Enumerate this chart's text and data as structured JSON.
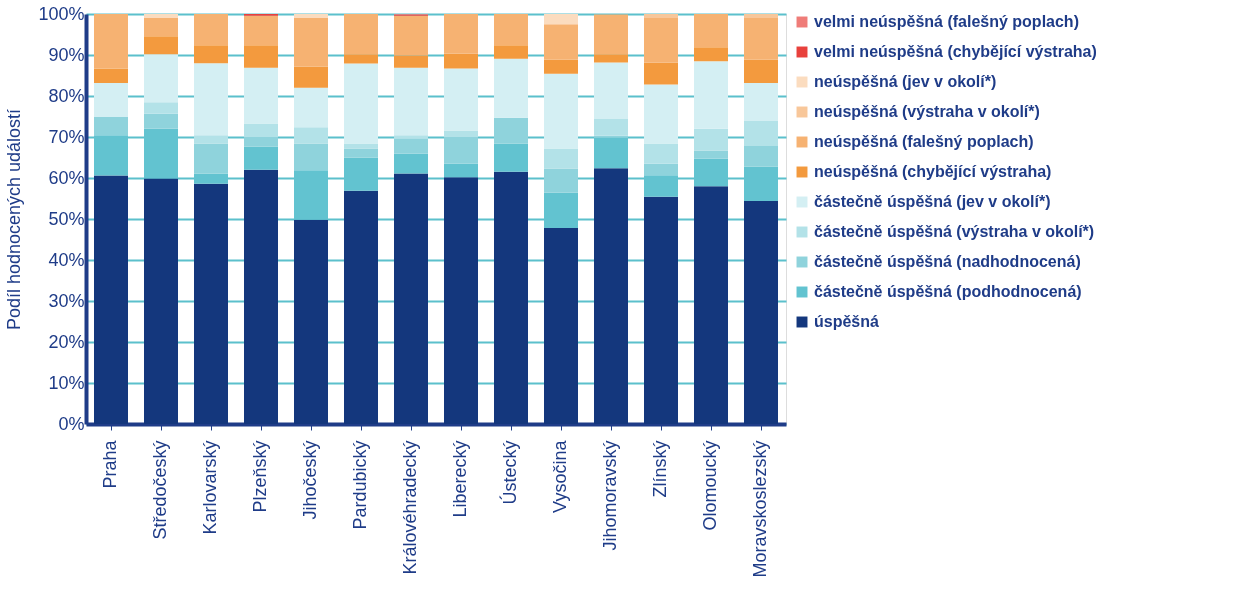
{
  "chart_data": {
    "type": "bar",
    "stacked": true,
    "ylabel": "Podíl hodnocených událostí",
    "categories": [
      "Praha",
      "Středočeský",
      "Karlovarský",
      "Plzeňský",
      "Jihočeský",
      "Pardubický",
      "Královéhradecký",
      "Liberecký",
      "Ústecký",
      "Vysočina",
      "Jihomoravský",
      "Zlínský",
      "Olomoucký",
      "Moravskoslezský"
    ],
    "series": [
      {
        "name": "úspěšná",
        "color": "#14377d",
        "values": [
          60.6,
          59.9,
          58.6,
          62.0,
          49.8,
          56.9,
          61.1,
          60.2,
          61.5,
          47.8,
          62.4,
          55.4,
          58.0,
          54.4
        ]
      },
      {
        "name": "částečně úspěšná (podhodnocená)",
        "color": "#62c3d0",
        "values": [
          9.8,
          12.1,
          2.5,
          5.7,
          12.1,
          8.1,
          4.8,
          3.3,
          6.9,
          8.6,
          7.4,
          5.3,
          6.7,
          8.4
        ]
      },
      {
        "name": "částečně úspěšná (nadhodnocená)",
        "color": "#8fd3dc",
        "values": [
          4.5,
          3.7,
          7.3,
          2.3,
          6.5,
          2.2,
          3.7,
          6.5,
          6.3,
          5.9,
          0.5,
          2.8,
          2.0,
          5.0
        ]
      },
      {
        "name": "částečně úspěšná (výstraha v okolí*)",
        "color": "#b3e2e8",
        "values": [
          0,
          2.8,
          2.0,
          3.3,
          4.0,
          1.2,
          0.8,
          1.6,
          0,
          4.9,
          4.1,
          4.9,
          5.3,
          6.1
        ]
      },
      {
        "name": "částečně úspěšná (jev v okolí*)",
        "color": "#d4eff3",
        "values": [
          8.3,
          11.7,
          17.6,
          13.6,
          9.6,
          19.5,
          16.5,
          15.1,
          14.4,
          18.2,
          13.8,
          14.4,
          16.5,
          9.3
        ]
      },
      {
        "name": "neúspěšná (chybějící výstraha)",
        "color": "#f39a3e",
        "values": [
          3.5,
          4.4,
          4.4,
          5.5,
          5.2,
          2.3,
          3.0,
          3.6,
          3.3,
          3.5,
          2.0,
          5.3,
          3.4,
          5.7
        ]
      },
      {
        "name": "neúspěšná (falešný poplach)",
        "color": "#f6b272",
        "values": [
          13.3,
          4.4,
          7.6,
          7.2,
          11.8,
          9.8,
          9.7,
          9.7,
          7.6,
          8.6,
          9.7,
          10.9,
          8.1,
          10.1
        ]
      },
      {
        "name": "neúspěšná (výstraha v okolí*)",
        "color": "#f8c79a",
        "values": [
          0,
          0,
          0,
          0,
          0,
          0,
          0,
          0,
          0,
          0,
          0,
          1.0,
          0,
          1.0
        ]
      },
      {
        "name": "neúspěšná (jev v okolí*)",
        "color": "#fbdcbf",
        "values": [
          0,
          1.0,
          0,
          0,
          1.0,
          0,
          0,
          0,
          0,
          2.5,
          0,
          0,
          0,
          0
        ]
      },
      {
        "name": "velmi neúspěšná (chybějící výstraha)",
        "color": "#e8413c",
        "values": [
          0,
          0,
          0,
          0.4,
          0,
          0,
          0.2,
          0,
          0,
          0,
          0,
          0,
          0,
          0
        ]
      },
      {
        "name": "velmi neúspěšná (falešný poplach)",
        "color": "#ef7c78",
        "values": [
          0,
          0,
          0,
          0,
          0,
          0,
          0.2,
          0,
          0,
          0,
          0,
          0,
          0,
          0
        ]
      }
    ],
    "ylim": [
      0,
      100
    ],
    "yticks": [
      {
        "value": 0,
        "label": "0%"
      },
      {
        "value": 10,
        "label": "10%"
      },
      {
        "value": 20,
        "label": "20%"
      },
      {
        "value": 30,
        "label": "30%"
      },
      {
        "value": 40,
        "label": "40%"
      },
      {
        "value": 50,
        "label": "50%"
      },
      {
        "value": 60,
        "label": "60%"
      },
      {
        "value": 70,
        "label": "70%"
      },
      {
        "value": 80,
        "label": "80%"
      },
      {
        "value": 90,
        "label": "90%"
      },
      {
        "value": 100,
        "label": "100%"
      }
    ],
    "grid": "y",
    "legend": "right"
  }
}
